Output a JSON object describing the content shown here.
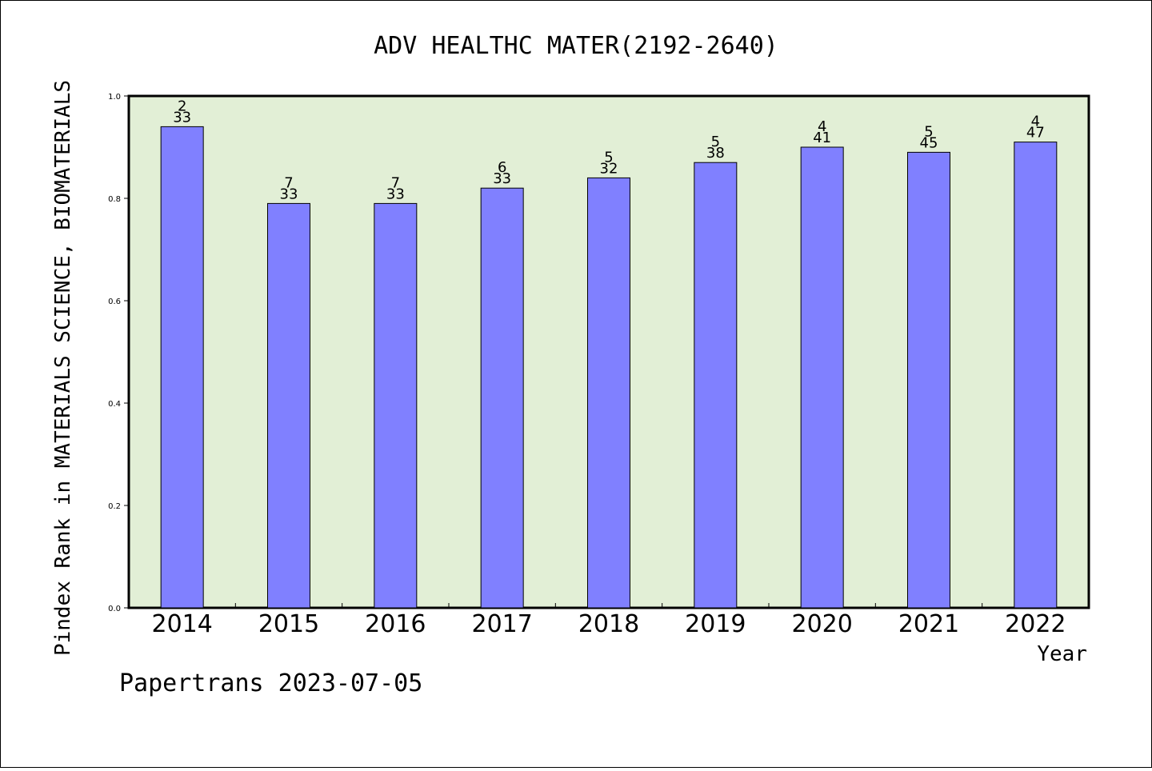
{
  "chart_data": {
    "type": "bar",
    "title": "ADV HEALTHC MATER(2192-2640)",
    "xlabel": "Year",
    "ylabel": "Pindex Rank in MATERIALS SCIENCE, BIOMATERIALS",
    "categories": [
      "2014",
      "2015",
      "2016",
      "2017",
      "2018",
      "2019",
      "2020",
      "2021",
      "2022"
    ],
    "values": [
      0.94,
      0.79,
      0.79,
      0.82,
      0.84,
      0.87,
      0.9,
      0.89,
      0.91
    ],
    "rank_labels": [
      "2",
      "7",
      "7",
      "6",
      "5",
      "5",
      "4",
      "5",
      "4"
    ],
    "total_labels": [
      "33",
      "33",
      "33",
      "33",
      "32",
      "38",
      "41",
      "45",
      "47"
    ],
    "ylim": [
      0,
      1
    ],
    "yticks": [
      "0.0",
      "0.2",
      "0.4",
      "0.6",
      "0.8",
      "1.0"
    ],
    "grid": false,
    "colors": {
      "bar": "#8080ff",
      "plot_background": "#e2efd6",
      "axis": "#000000"
    }
  },
  "footer": {
    "watermark": "Papertrans 2023-07-05"
  }
}
